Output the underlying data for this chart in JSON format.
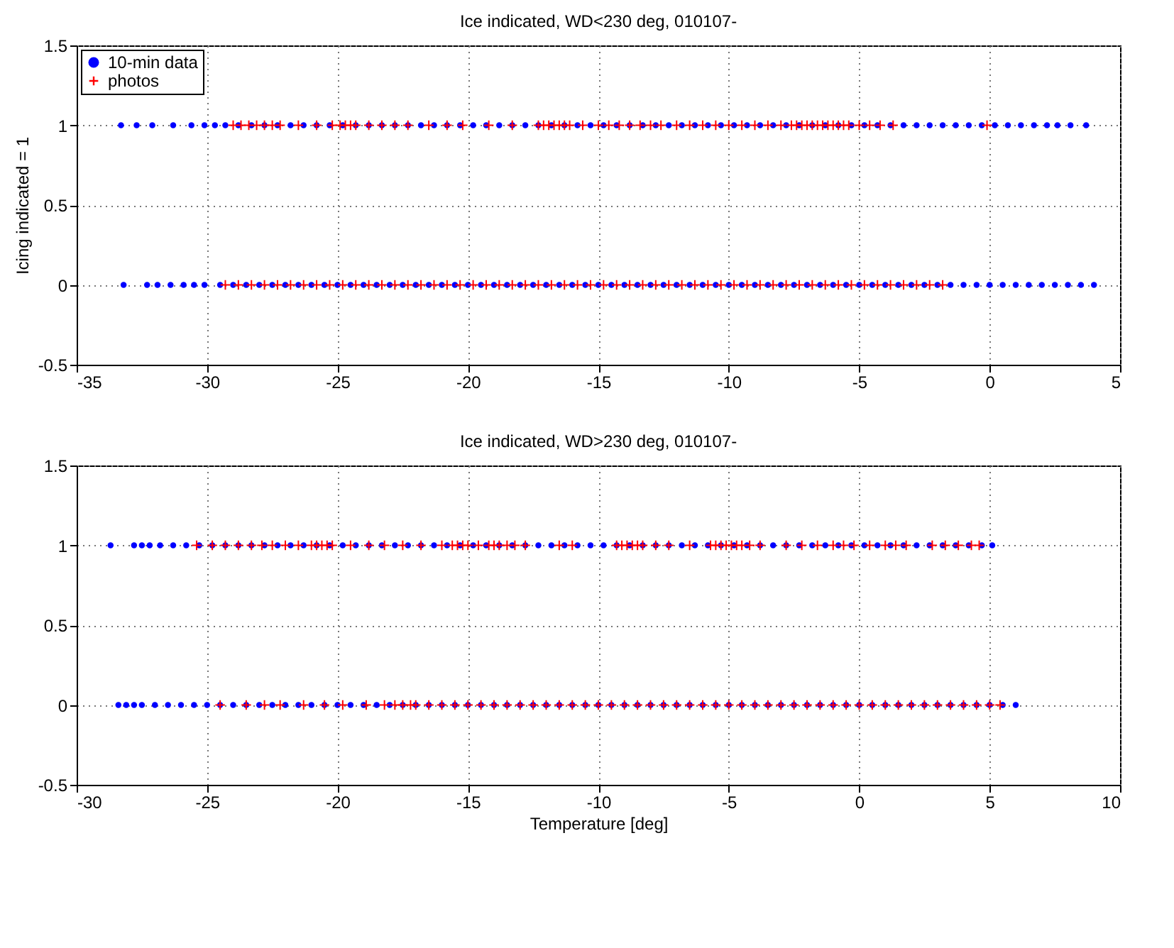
{
  "chart_data": [
    {
      "type": "scatter",
      "title": "Ice indicated, WD<230 deg, 010107-",
      "ylabel": "Icing indicated = 1",
      "xlim": [
        -35,
        5
      ],
      "xticks": [
        -35,
        -30,
        -25,
        -20,
        -15,
        -10,
        -5,
        0,
        5
      ],
      "ylim": [
        -0.5,
        1.5
      ],
      "yticks": [
        -0.5,
        0,
        0.5,
        1,
        1.5
      ],
      "grid": true,
      "legend": "top left",
      "series": [
        {
          "name": "10-min data",
          "color": "#0000ff",
          "marker": "circle",
          "x": [
            -33.3,
            -32.7,
            -32.1,
            -31.3,
            -30.6,
            -30.1,
            -29.7,
            -29.3,
            -28.8,
            -28.3,
            -27.8,
            -27.3,
            -26.8,
            -26.3,
            -25.8,
            -25.3,
            -24.8,
            -24.3,
            -23.8,
            -23.3,
            -22.8,
            -22.3,
            -21.8,
            -21.3,
            -20.8,
            -20.3,
            -19.8,
            -19.3,
            -18.8,
            -18.3,
            -17.8,
            -17.3,
            -16.8,
            -16.3,
            -15.8,
            -15.3,
            -14.8,
            -14.3,
            -13.8,
            -13.3,
            -12.8,
            -12.3,
            -11.8,
            -11.3,
            -10.8,
            -10.3,
            -9.8,
            -9.3,
            -8.8,
            -8.3,
            -7.8,
            -7.3,
            -6.8,
            -6.3,
            -5.8,
            -5.3,
            -4.8,
            -4.3,
            -3.8,
            -3.3,
            -2.8,
            -2.3,
            -1.8,
            -1.3,
            -0.8,
            -0.3,
            0.2,
            0.7,
            1.2,
            1.7,
            2.2,
            2.6,
            3.1,
            3.7,
            -33.2,
            -32.3,
            -31.9,
            -31.4,
            -30.9,
            -30.5,
            -30.1,
            -29.5,
            -29,
            -28.5,
            -28,
            -27.5,
            -27,
            -26.5,
            -26,
            -25.5,
            -25,
            -24.5,
            -24,
            -23.5,
            -23,
            -22.5,
            -22,
            -21.5,
            -21,
            -20.5,
            -20,
            -19.5,
            -19,
            -18.5,
            -18,
            -17.5,
            -17,
            -16.5,
            -16,
            -15.5,
            -15,
            -14.5,
            -14,
            -13.5,
            -13,
            -12.5,
            -12,
            -11.5,
            -11,
            -10.5,
            -10,
            -9.5,
            -9,
            -8.5,
            -8,
            -7.5,
            -7,
            -6.5,
            -6,
            -5.5,
            -5,
            -4.5,
            -4,
            -3.5,
            -3,
            -2.5,
            -2,
            -1.5,
            -1,
            -0.5,
            0,
            0.5,
            1,
            1.5,
            2,
            2.5,
            3,
            3.5,
            4.0
          ],
          "values": [
            1,
            1,
            1,
            1,
            1,
            1,
            1,
            1,
            1,
            1,
            1,
            1,
            1,
            1,
            1,
            1,
            1,
            1,
            1,
            1,
            1,
            1,
            1,
            1,
            1,
            1,
            1,
            1,
            1,
            1,
            1,
            1,
            1,
            1,
            1,
            1,
            1,
            1,
            1,
            1,
            1,
            1,
            1,
            1,
            1,
            1,
            1,
            1,
            1,
            1,
            1,
            1,
            1,
            1,
            1,
            1,
            1,
            1,
            1,
            1,
            1,
            1,
            1,
            1,
            1,
            1,
            1,
            1,
            1,
            1,
            1,
            1,
            1,
            1,
            0,
            0,
            0,
            0,
            0,
            0,
            0,
            0,
            0,
            0,
            0,
            0,
            0,
            0,
            0,
            0,
            0,
            0,
            0,
            0,
            0,
            0,
            0,
            0,
            0,
            0,
            0,
            0,
            0,
            0,
            0,
            0,
            0,
            0,
            0,
            0,
            0,
            0,
            0,
            0,
            0,
            0,
            0,
            0,
            0,
            0,
            0,
            0,
            0,
            0,
            0,
            0,
            0,
            0,
            0,
            0,
            0,
            0,
            0,
            0,
            0,
            0,
            0,
            0,
            0,
            0,
            0,
            0,
            0,
            0,
            0,
            0,
            0,
            0,
            0
          ]
        },
        {
          "name": "photos",
          "color": "#ff0000",
          "marker": "cross",
          "x": [
            -29.0,
            -28.7,
            -28.4,
            -28.1,
            -27.8,
            -27.5,
            -27.2,
            -26.5,
            -25.8,
            -25.2,
            -24.9,
            -24.7,
            -24.5,
            -24.3,
            -23.8,
            -23.3,
            -22.8,
            -22.3,
            -21.5,
            -20.8,
            -20.2,
            -19.2,
            -18.3,
            -17.3,
            -17.1,
            -16.9,
            -16.7,
            -16.5,
            -16.3,
            -16.1,
            -15.6,
            -15.0,
            -14.6,
            -14.2,
            -13.8,
            -13.4,
            -13.0,
            -12.6,
            -12.0,
            -11.5,
            -11.0,
            -10.5,
            -10.0,
            -9.5,
            -9.0,
            -8.5,
            -8.0,
            -7.6,
            -7.4,
            -7.2,
            -7.0,
            -6.8,
            -6.6,
            -6.4,
            -6.2,
            -6.0,
            -5.8,
            -5.6,
            -5.4,
            -5.0,
            -4.6,
            -4.2,
            -3.7,
            -0.1,
            -29.3,
            -28.8,
            -28.3,
            -27.8,
            -27.3,
            -26.8,
            -26.3,
            -25.8,
            -25.3,
            -24.8,
            -24.3,
            -23.8,
            -23.3,
            -22.8,
            -22.3,
            -21.8,
            -21.3,
            -20.8,
            -20.3,
            -19.8,
            -19.3,
            -18.8,
            -18.3,
            -17.8,
            -17.3,
            -16.8,
            -16.3,
            -15.8,
            -15.3,
            -14.8,
            -14.3,
            -13.8,
            -13.3,
            -12.8,
            -12.3,
            -11.8,
            -11.3,
            -10.8,
            -10.3,
            -9.8,
            -9.3,
            -8.8,
            -8.3,
            -7.8,
            -7.3,
            -6.8,
            -6.3,
            -5.8,
            -5.3,
            -4.8,
            -4.3,
            -3.8,
            -3.3,
            -2.8,
            -2.3,
            -1.8
          ],
          "values": [
            1,
            1,
            1,
            1,
            1,
            1,
            1,
            1,
            1,
            1,
            1,
            1,
            1,
            1,
            1,
            1,
            1,
            1,
            1,
            1,
            1,
            1,
            1,
            1,
            1,
            1,
            1,
            1,
            1,
            1,
            1,
            1,
            1,
            1,
            1,
            1,
            1,
            1,
            1,
            1,
            1,
            1,
            1,
            1,
            1,
            1,
            1,
            1,
            1,
            1,
            1,
            1,
            1,
            1,
            1,
            1,
            1,
            1,
            1,
            1,
            1,
            1,
            1,
            1,
            0,
            0,
            0,
            0,
            0,
            0,
            0,
            0,
            0,
            0,
            0,
            0,
            0,
            0,
            0,
            0,
            0,
            0,
            0,
            0,
            0,
            0,
            0,
            0,
            0,
            0,
            0,
            0,
            0,
            0,
            0,
            0,
            0,
            0,
            0,
            0,
            0,
            0,
            0,
            0,
            0,
            0,
            0,
            0,
            0,
            0,
            0,
            0,
            0,
            0,
            0,
            0,
            0,
            0,
            0,
            0
          ]
        }
      ]
    },
    {
      "type": "scatter",
      "title": "Ice indicated, WD>230 deg, 010107-",
      "xlabel": "Temperature [deg]",
      "xlim": [
        -30,
        10
      ],
      "xticks": [
        -30,
        -25,
        -20,
        -15,
        -10,
        -5,
        0,
        5,
        10
      ],
      "ylim": [
        -0.5,
        1.5
      ],
      "yticks": [
        -0.5,
        0,
        0.5,
        1,
        1.5
      ],
      "grid": true,
      "series": [
        {
          "color": "#0000ff",
          "marker": "circle",
          "x": [
            -28.7,
            -27.8,
            -27.5,
            -27.2,
            -26.8,
            -26.3,
            -25.8,
            -25.3,
            -24.8,
            -24.3,
            -23.8,
            -23.3,
            -22.8,
            -22.3,
            -21.8,
            -21.3,
            -20.8,
            -20.3,
            -19.8,
            -19.3,
            -18.8,
            -18.3,
            -17.8,
            -17.3,
            -16.8,
            -16.3,
            -15.8,
            -15.3,
            -14.8,
            -14.3,
            -13.8,
            -13.3,
            -12.8,
            -12.3,
            -11.8,
            -11.3,
            -10.8,
            -10.3,
            -9.8,
            -9.3,
            -8.8,
            -8.3,
            -7.8,
            -7.3,
            -6.8,
            -6.3,
            -5.8,
            -5.3,
            -4.8,
            -4.3,
            -3.8,
            -3.3,
            -2.8,
            -2.3,
            -1.8,
            -1.3,
            -0.8,
            -0.3,
            0.2,
            0.7,
            1.2,
            1.7,
            2.2,
            2.7,
            3.2,
            3.7,
            4.2,
            4.7,
            5.1,
            -28.4,
            -28.1,
            -27.8,
            -27.5,
            -27.0,
            -26.5,
            -26,
            -25.5,
            -25,
            -24.5,
            -24,
            -23.5,
            -23,
            -22.5,
            -22,
            -21.5,
            -21,
            -20.5,
            -20,
            -19.5,
            -19,
            -18.5,
            -18,
            -17.5,
            -17,
            -16.5,
            -16,
            -15.5,
            -15,
            -14.5,
            -14,
            -13.5,
            -13,
            -12.5,
            -12,
            -11.5,
            -11,
            -10.5,
            -10,
            -9.5,
            -9,
            -8.5,
            -8,
            -7.5,
            -7,
            -6.5,
            -6,
            -5.5,
            -5,
            -4.5,
            -4,
            -3.5,
            -3,
            -2.5,
            -2,
            -1.5,
            -1,
            -0.5,
            0,
            0.5,
            1,
            1.5,
            2,
            2.5,
            3,
            3.5,
            4,
            4.5,
            5,
            5.5,
            6.0
          ],
          "values": [
            1,
            1,
            1,
            1,
            1,
            1,
            1,
            1,
            1,
            1,
            1,
            1,
            1,
            1,
            1,
            1,
            1,
            1,
            1,
            1,
            1,
            1,
            1,
            1,
            1,
            1,
            1,
            1,
            1,
            1,
            1,
            1,
            1,
            1,
            1,
            1,
            1,
            1,
            1,
            1,
            1,
            1,
            1,
            1,
            1,
            1,
            1,
            1,
            1,
            1,
            1,
            1,
            1,
            1,
            1,
            1,
            1,
            1,
            1,
            1,
            1,
            1,
            1,
            1,
            1,
            1,
            1,
            1,
            1,
            0,
            0,
            0,
            0,
            0,
            0,
            0,
            0,
            0,
            0,
            0,
            0,
            0,
            0,
            0,
            0,
            0,
            0,
            0,
            0,
            0,
            0,
            0,
            0,
            0,
            0,
            0,
            0,
            0,
            0,
            0,
            0,
            0,
            0,
            0,
            0,
            0,
            0,
            0,
            0,
            0,
            0,
            0,
            0,
            0,
            0,
            0,
            0,
            0,
            0,
            0,
            0,
            0,
            0,
            0,
            0,
            0,
            0,
            0,
            0,
            0,
            0,
            0,
            0,
            0,
            0,
            0,
            0,
            0,
            0,
            0
          ]
        },
        {
          "color": "#ff0000",
          "marker": "cross",
          "x": [
            -25.4,
            -24.8,
            -24.3,
            -23.8,
            -23.3,
            -22.9,
            -22.5,
            -22.0,
            -21.5,
            -21.0,
            -20.8,
            -20.6,
            -20.4,
            -20.2,
            -19.5,
            -18.8,
            -18.2,
            -17.5,
            -16.8,
            -16.0,
            -15.6,
            -15.4,
            -15.2,
            -15.0,
            -14.6,
            -14.2,
            -14.0,
            -13.8,
            -13.5,
            -13.2,
            -12.8,
            -11.5,
            -11.0,
            -9.3,
            -9.1,
            -8.9,
            -8.7,
            -8.5,
            -8.3,
            -7.8,
            -7.3,
            -6.5,
            -5.7,
            -5.5,
            -5.3,
            -5.1,
            -4.9,
            -4.7,
            -4.5,
            -4.2,
            -3.8,
            -2.8,
            -2.2,
            -1.6,
            -1.0,
            -0.6,
            -0.2,
            0.4,
            1.0,
            1.4,
            1.8,
            2.8,
            3.3,
            3.8,
            4.3,
            4.6,
            -24.5,
            -23.5,
            -22.8,
            -22.2,
            -21.3,
            -20.5,
            -19.8,
            -18.9,
            -18.2,
            -17.8,
            -17.5,
            -17.2,
            -17,
            -16.5,
            -16,
            -15.5,
            -15,
            -14.5,
            -14,
            -13.5,
            -13,
            -12.5,
            -12,
            -11.5,
            -11,
            -10.5,
            -10,
            -9.5,
            -9,
            -8.5,
            -8,
            -7.5,
            -7,
            -6.5,
            -6,
            -5.5,
            -5,
            -4.5,
            -4,
            -3.5,
            -3,
            -2.5,
            -2,
            -1.5,
            -1,
            -0.5,
            0,
            0.5,
            1,
            1.5,
            2,
            2.5,
            3,
            3.5,
            4,
            4.5,
            5,
            5.4
          ],
          "values": [
            1,
            1,
            1,
            1,
            1,
            1,
            1,
            1,
            1,
            1,
            1,
            1,
            1,
            1,
            1,
            1,
            1,
            1,
            1,
            1,
            1,
            1,
            1,
            1,
            1,
            1,
            1,
            1,
            1,
            1,
            1,
            1,
            1,
            1,
            1,
            1,
            1,
            1,
            1,
            1,
            1,
            1,
            1,
            1,
            1,
            1,
            1,
            1,
            1,
            1,
            1,
            1,
            1,
            1,
            1,
            1,
            1,
            1,
            1,
            1,
            1,
            1,
            1,
            1,
            1,
            1,
            0,
            0,
            0,
            0,
            0,
            0,
            0,
            0,
            0,
            0,
            0,
            0,
            0,
            0,
            0,
            0,
            0,
            0,
            0,
            0,
            0,
            0,
            0,
            0,
            0,
            0,
            0,
            0,
            0,
            0,
            0,
            0,
            0,
            0,
            0,
            0,
            0,
            0,
            0,
            0,
            0,
            0,
            0,
            0,
            0,
            0,
            0,
            0,
            0,
            0,
            0,
            0,
            0,
            0,
            0,
            0,
            0,
            0
          ]
        }
      ]
    }
  ]
}
